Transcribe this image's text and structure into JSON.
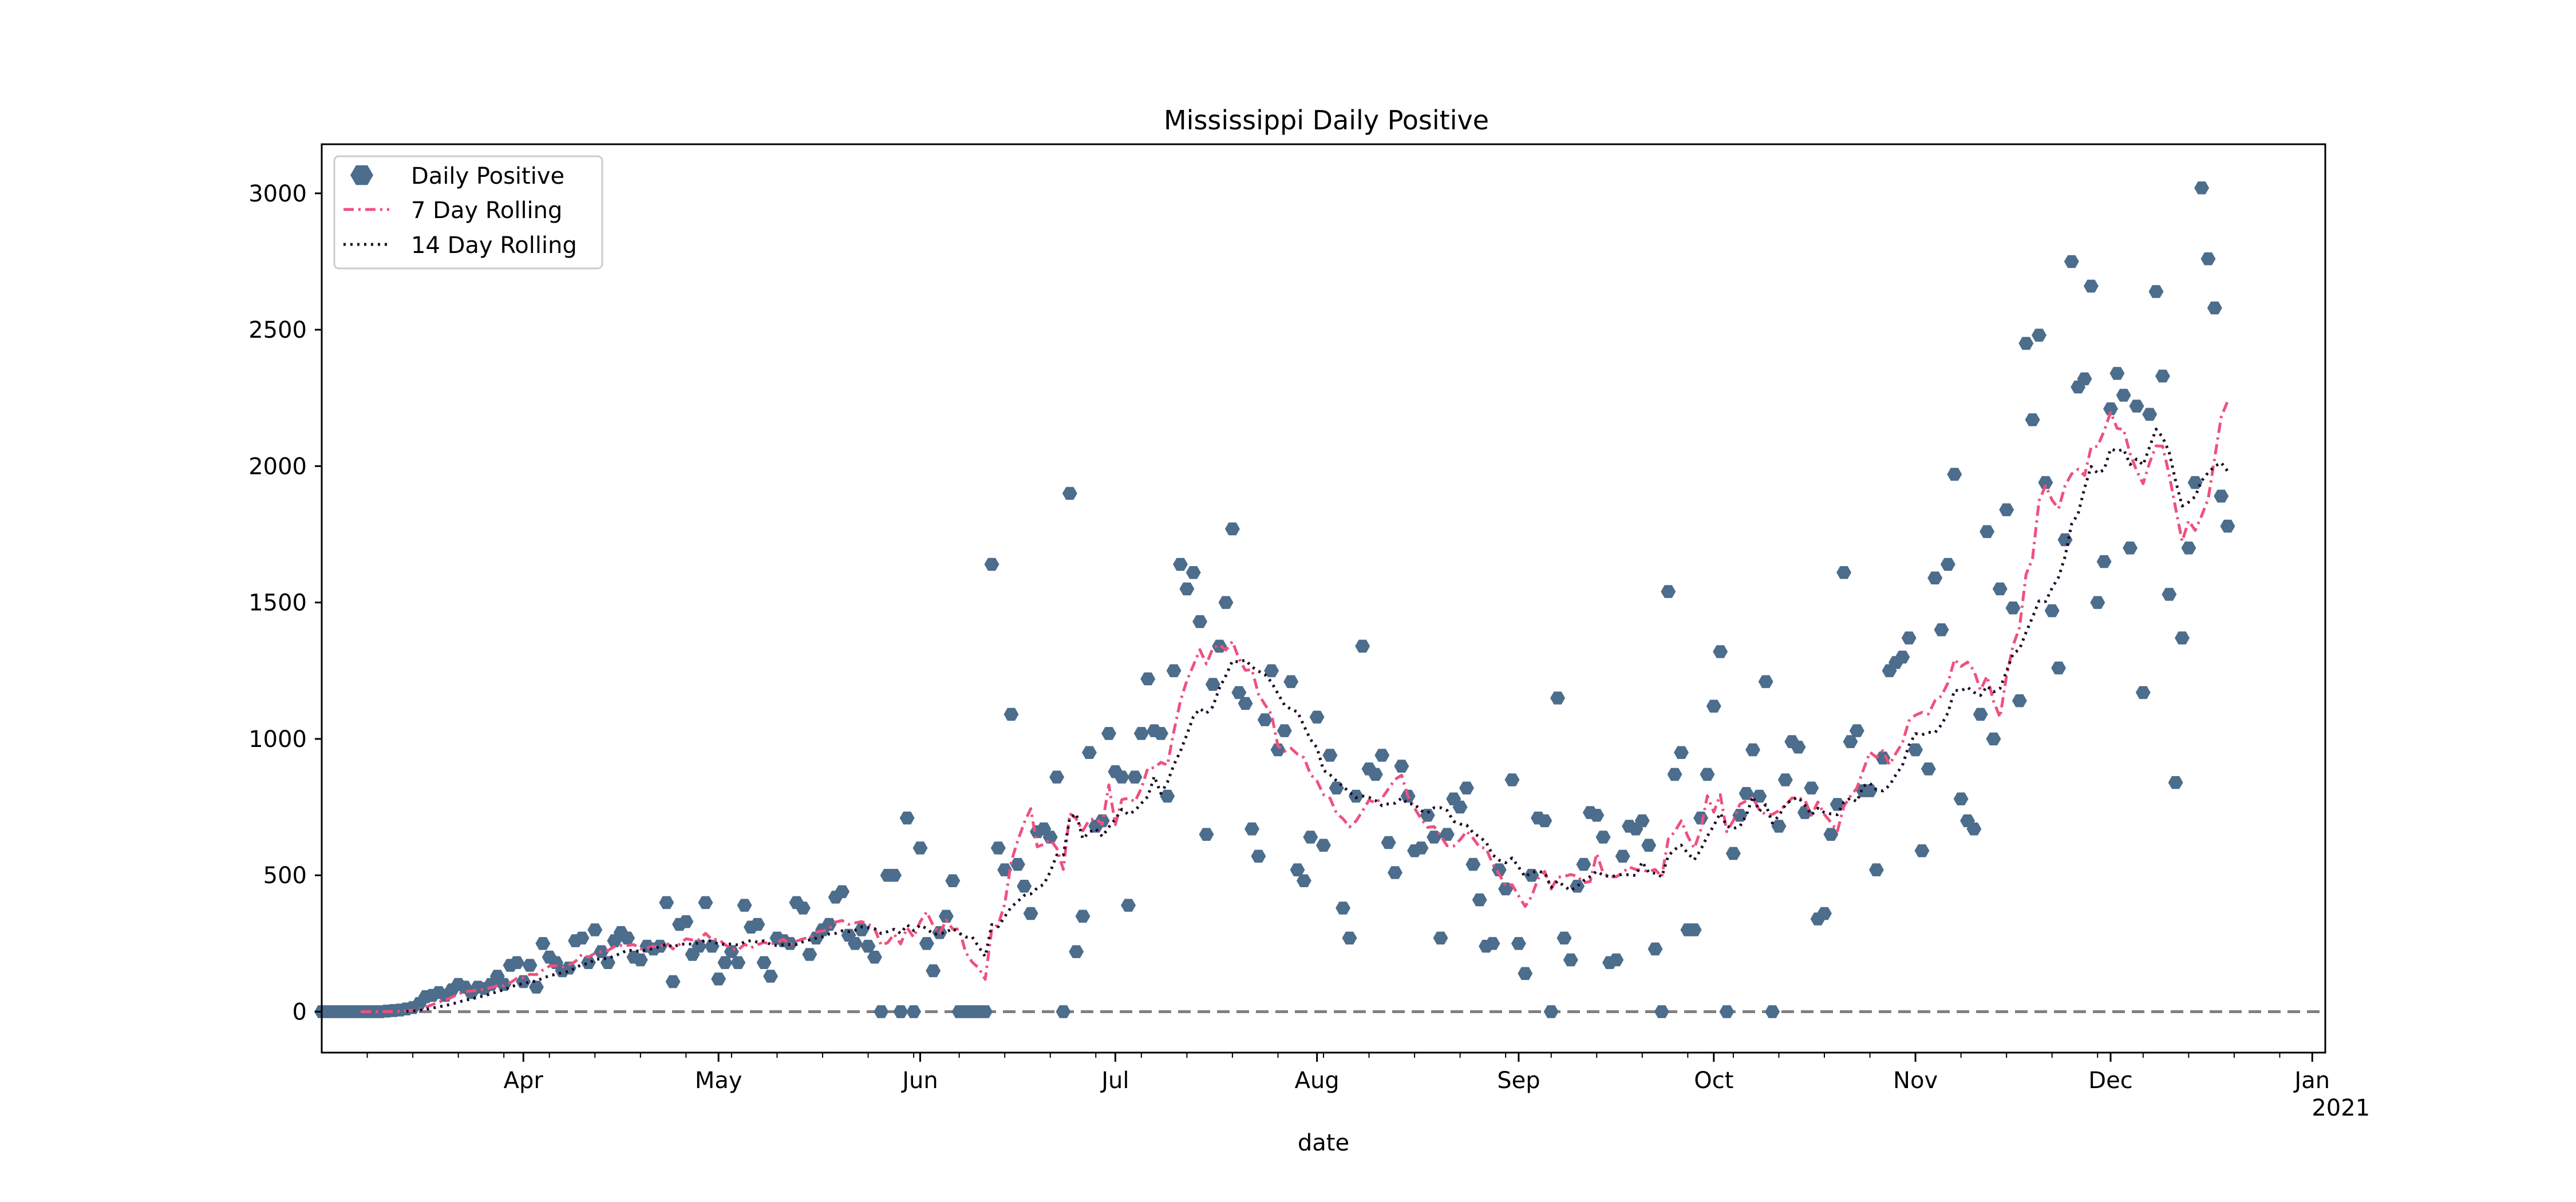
{
  "chart_data": {
    "type": "scatter",
    "title": "Mississippi Daily Positive",
    "xlabel": "date",
    "ylabel": "",
    "ylim": [
      -150,
      3180
    ],
    "x_range": [
      "2020-03-01",
      "2021-01-03"
    ],
    "x_ticks": [
      {
        "date": "2020-04-01",
        "label": "Apr"
      },
      {
        "date": "2020-05-01",
        "label": "May"
      },
      {
        "date": "2020-06-01",
        "label": "Jun"
      },
      {
        "date": "2020-07-01",
        "label": "Jul"
      },
      {
        "date": "2020-08-01",
        "label": "Aug"
      },
      {
        "date": "2020-09-01",
        "label": "Sep"
      },
      {
        "date": "2020-10-01",
        "label": "Oct"
      },
      {
        "date": "2020-11-01",
        "label": "Nov"
      },
      {
        "date": "2020-12-01",
        "label": "Dec"
      },
      {
        "date": "2021-01-01",
        "label": "Jan",
        "sublabel": "2021"
      }
    ],
    "y_ticks": [
      0,
      500,
      1000,
      1500,
      2000,
      2500,
      3000
    ],
    "zero_line": {
      "value": 0,
      "style": "dashed",
      "color": "#808080"
    },
    "legend_position": "top-left",
    "series": [
      {
        "name": "Daily Positive",
        "kind": "markers",
        "color": "#4c6d8c",
        "start": "2020-03-01",
        "values": [
          0,
          0,
          0,
          0,
          0,
          0,
          0,
          0,
          0,
          0,
          2,
          4,
          6,
          10,
          15,
          30,
          55,
          60,
          70,
          60,
          80,
          100,
          90,
          70,
          90,
          85,
          100,
          130,
          100,
          170,
          180,
          110,
          170,
          90,
          250,
          200,
          180,
          150,
          160,
          260,
          270,
          180,
          300,
          220,
          180,
          260,
          290,
          270,
          200,
          190,
          240,
          230,
          240,
          400,
          110,
          320,
          330,
          210,
          240,
          400,
          240,
          120,
          180,
          220,
          180,
          390,
          310,
          320,
          180,
          130,
          270,
          260,
          250,
          400,
          380,
          210,
          270,
          300,
          320,
          420,
          440,
          280,
          250,
          300,
          240,
          200,
          0,
          500,
          500,
          0,
          710,
          0,
          600,
          250,
          150,
          290,
          350,
          480,
          0,
          0,
          0,
          0,
          0,
          1640,
          600,
          520,
          1090,
          540,
          460,
          360,
          660,
          670,
          640,
          860,
          0,
          1900,
          220,
          350,
          950,
          680,
          700,
          1020,
          880,
          860,
          390,
          860,
          1020,
          1220,
          1030,
          1020,
          790,
          1250,
          1640,
          1550,
          1610,
          1430,
          650,
          1200,
          1340,
          1500,
          1770,
          1170,
          1130,
          670,
          570,
          1070,
          1250,
          960,
          1030,
          1210,
          520,
          480,
          640,
          1080,
          610,
          940,
          820,
          380,
          270,
          790,
          1340,
          890,
          870,
          940,
          620,
          510,
          900,
          790,
          590,
          600,
          720,
          640,
          270,
          650,
          780,
          750,
          820,
          540,
          410,
          240,
          250,
          520,
          450,
          850,
          250,
          140,
          500,
          710,
          700,
          0,
          1150,
          270,
          190,
          460,
          540,
          730,
          720,
          640,
          180,
          190,
          570,
          680,
          670,
          700,
          610,
          230,
          0,
          1540,
          870,
          950,
          300,
          300,
          710,
          870,
          1120,
          1320,
          0,
          580,
          720,
          800,
          960,
          790,
          1210,
          0,
          680,
          850,
          990,
          970,
          730,
          820,
          340,
          360,
          650,
          760,
          1610,
          990,
          1030,
          810,
          810,
          520,
          930,
          1250,
          1280,
          1300,
          1370,
          960,
          590,
          890,
          1590,
          1400,
          1640,
          1970,
          780,
          700,
          670,
          1090,
          1760,
          1000,
          1550,
          1840,
          1480,
          1140,
          2450,
          2170,
          2480,
          1940,
          1470,
          1260,
          1730,
          2750,
          2290,
          2320,
          2660,
          1500,
          1650,
          2210,
          2340,
          2260,
          1700,
          2220,
          1170,
          2190,
          2640,
          2330,
          1530,
          840,
          1370,
          1700,
          1940,
          3020,
          2760,
          2580,
          1890,
          1780
        ]
      },
      {
        "name": "7 Day Rolling",
        "kind": "line",
        "style": "dashdot",
        "color": "#f0507e",
        "window": 7
      },
      {
        "name": "14 Day Rolling",
        "kind": "line",
        "style": "dotted",
        "color": "#1a0a26",
        "window": 14
      }
    ]
  }
}
